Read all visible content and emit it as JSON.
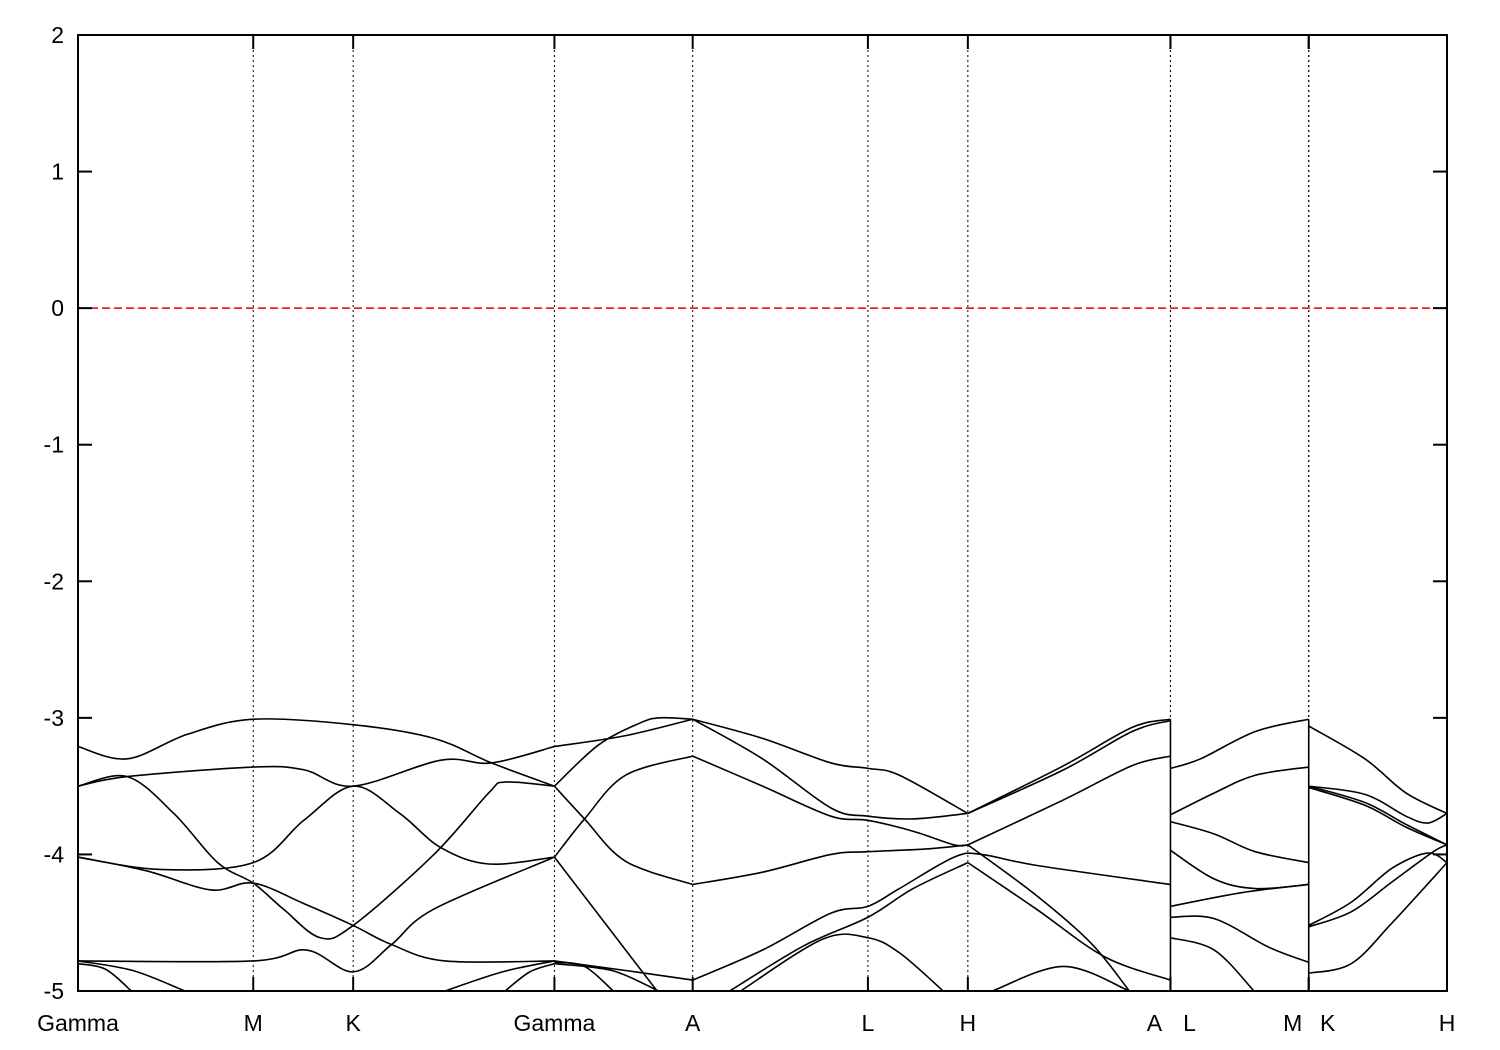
{
  "chart_data": {
    "type": "line",
    "title": "",
    "xlabel": "",
    "ylabel": "",
    "ylim": [
      -5,
      2
    ],
    "xlim": [
      0,
      1
    ],
    "grid": "vertical dotted lines at high-symmetry points",
    "legend": "none",
    "yticks": [
      {
        "value": 2,
        "label": "2"
      },
      {
        "value": 1,
        "label": "1"
      },
      {
        "value": 0,
        "label": "0"
      },
      {
        "value": -1,
        "label": "-1"
      },
      {
        "value": -2,
        "label": "-2"
      },
      {
        "value": -3,
        "label": "-3"
      },
      {
        "value": -4,
        "label": "-4"
      },
      {
        "value": -5,
        "label": "-5"
      }
    ],
    "xticks": [
      {
        "k": 0.0,
        "label": "Gamma"
      },
      {
        "k": 0.128,
        "label": "M"
      },
      {
        "k": 0.201,
        "label": "K"
      },
      {
        "k": 0.348,
        "label": "Gamma"
      },
      {
        "k": 0.449,
        "label": "A"
      },
      {
        "k": 0.577,
        "label": "L"
      },
      {
        "k": 0.65,
        "label": "H"
      },
      {
        "k": 0.798,
        "label": "A"
      },
      {
        "k": 0.798,
        "label": "L"
      },
      {
        "k": 0.899,
        "label": "M"
      },
      {
        "k": 0.899,
        "label": "K"
      },
      {
        "k": 1.0,
        "label": "H"
      }
    ],
    "path_breaks": [
      0.798,
      0.899
    ],
    "fermi_level": {
      "value": 0,
      "color": "#e00000",
      "style": "dashed"
    },
    "band_color": "#000000",
    "bands": [
      [
        [
          0,
          -3.21
        ],
        [
          0.036,
          -3.3
        ],
        [
          0.08,
          -3.12
        ],
        [
          0.128,
          -3.01
        ],
        [
          0.201,
          -3.05
        ],
        [
          0.26,
          -3.15
        ],
        [
          0.302,
          -3.33
        ],
        [
          0.348,
          -3.5
        ]
      ],
      [
        [
          0,
          -3.5
        ],
        [
          0.036,
          -3.43
        ],
        [
          0.128,
          -3.36
        ],
        [
          0.165,
          -3.38
        ],
        [
          0.201,
          -3.5
        ],
        [
          0.265,
          -3.31
        ],
        [
          0.302,
          -3.33
        ],
        [
          0.348,
          -3.21
        ]
      ],
      [
        [
          0,
          -3.5
        ],
        [
          0.036,
          -3.43
        ],
        [
          0.07,
          -3.7
        ],
        [
          0.102,
          -4.06
        ],
        [
          0.128,
          -4.21
        ],
        [
          0.15,
          -4.4
        ],
        [
          0.177,
          -4.61
        ],
        [
          0.201,
          -4.52
        ],
        [
          0.26,
          -4.0
        ],
        [
          0.3,
          -3.55
        ],
        [
          0.312,
          -3.47
        ],
        [
          0.348,
          -3.5
        ]
      ],
      [
        [
          0,
          -4.02
        ],
        [
          0.06,
          -4.11
        ],
        [
          0.128,
          -4.06
        ],
        [
          0.165,
          -3.75
        ],
        [
          0.201,
          -3.5
        ],
        [
          0.235,
          -3.7
        ],
        [
          0.265,
          -3.95
        ],
        [
          0.3,
          -4.07
        ],
        [
          0.348,
          -4.02
        ]
      ],
      [
        [
          0,
          -4.02
        ],
        [
          0.05,
          -4.12
        ],
        [
          0.097,
          -4.26
        ],
        [
          0.128,
          -4.21
        ],
        [
          0.165,
          -4.36
        ],
        [
          0.201,
          -4.52
        ],
        [
          0.229,
          -4.66
        ],
        [
          0.268,
          -4.78
        ],
        [
          0.348,
          -4.78
        ]
      ],
      [
        [
          0,
          -4.78
        ],
        [
          0.128,
          -4.78
        ],
        [
          0.167,
          -4.7
        ],
        [
          0.201,
          -4.86
        ],
        [
          0.229,
          -4.66
        ],
        [
          0.26,
          -4.4
        ],
        [
          0.348,
          -4.02
        ]
      ],
      [
        [
          0,
          -4.8
        ],
        [
          0.02,
          -4.84
        ],
        [
          0.039,
          -5.0
        ]
      ],
      [
        [
          0,
          -4.78
        ],
        [
          0.04,
          -4.85
        ],
        [
          0.078,
          -5.0
        ]
      ],
      [
        [
          0.268,
          -5.0
        ],
        [
          0.31,
          -4.86
        ],
        [
          0.348,
          -4.78
        ]
      ],
      [
        [
          0.312,
          -5.0
        ],
        [
          0.33,
          -4.86
        ],
        [
          0.348,
          -4.8
        ]
      ],
      [
        [
          0.348,
          -3.21
        ],
        [
          0.4,
          -3.13
        ],
        [
          0.449,
          -3.01
        ]
      ],
      [
        [
          0.348,
          -3.5
        ],
        [
          0.38,
          -3.2
        ],
        [
          0.41,
          -3.04
        ],
        [
          0.425,
          -3.0
        ],
        [
          0.449,
          -3.01
        ]
      ],
      [
        [
          0.348,
          -3.5
        ],
        [
          0.37,
          -3.74
        ],
        [
          0.4,
          -4.05
        ],
        [
          0.449,
          -4.22
        ]
      ],
      [
        [
          0.348,
          -4.02
        ],
        [
          0.37,
          -3.74
        ],
        [
          0.4,
          -3.42
        ],
        [
          0.449,
          -3.28
        ]
      ],
      [
        [
          0.348,
          -4.02
        ],
        [
          0.423,
          -5.0
        ]
      ],
      [
        [
          0.348,
          -4.78
        ],
        [
          0.4,
          -4.85
        ],
        [
          0.449,
          -4.92
        ]
      ],
      [
        [
          0.348,
          -4.79
        ],
        [
          0.37,
          -4.82
        ],
        [
          0.391,
          -5.0
        ]
      ],
      [
        [
          0.348,
          -4.8
        ],
        [
          0.39,
          -4.85
        ],
        [
          0.424,
          -5.0
        ]
      ],
      [
        [
          0.449,
          -3.01
        ],
        [
          0.5,
          -3.15
        ],
        [
          0.55,
          -3.33
        ],
        [
          0.577,
          -3.37
        ],
        [
          0.6,
          -3.42
        ],
        [
          0.65,
          -3.7
        ]
      ],
      [
        [
          0.449,
          -3.01
        ],
        [
          0.5,
          -3.3
        ],
        [
          0.55,
          -3.66
        ],
        [
          0.577,
          -3.72
        ],
        [
          0.61,
          -3.74
        ],
        [
          0.65,
          -3.7
        ]
      ],
      [
        [
          0.449,
          -3.28
        ],
        [
          0.5,
          -3.5
        ],
        [
          0.55,
          -3.72
        ],
        [
          0.577,
          -3.75
        ],
        [
          0.61,
          -3.83
        ],
        [
          0.64,
          -3.93
        ],
        [
          0.65,
          -3.93
        ]
      ],
      [
        [
          0.449,
          -4.22
        ],
        [
          0.5,
          -4.13
        ],
        [
          0.55,
          -4.0
        ],
        [
          0.577,
          -3.98
        ],
        [
          0.62,
          -3.96
        ],
        [
          0.65,
          -3.93
        ]
      ],
      [
        [
          0.449,
          -4.92
        ],
        [
          0.5,
          -4.7
        ],
        [
          0.55,
          -4.43
        ],
        [
          0.577,
          -4.38
        ],
        [
          0.6,
          -4.25
        ],
        [
          0.64,
          -4.02
        ],
        [
          0.66,
          -4.0
        ],
        [
          0.7,
          -4.08
        ],
        [
          0.798,
          -4.22
        ]
      ],
      [
        [
          0.476,
          -5.0
        ],
        [
          0.53,
          -4.67
        ],
        [
          0.577,
          -4.46
        ],
        [
          0.61,
          -4.25
        ],
        [
          0.65,
          -4.06
        ]
      ],
      [
        [
          0.484,
          -5.0
        ],
        [
          0.544,
          -4.62
        ],
        [
          0.577,
          -4.61
        ],
        [
          0.6,
          -4.72
        ],
        [
          0.632,
          -5.0
        ]
      ],
      [
        [
          0.65,
          -3.7
        ],
        [
          0.72,
          -3.35
        ],
        [
          0.77,
          -3.07
        ],
        [
          0.798,
          -3.01
        ]
      ],
      [
        [
          0.65,
          -3.7
        ],
        [
          0.72,
          -3.38
        ],
        [
          0.77,
          -3.1
        ],
        [
          0.798,
          -3.02
        ]
      ],
      [
        [
          0.65,
          -3.93
        ],
        [
          0.72,
          -3.6
        ],
        [
          0.77,
          -3.35
        ],
        [
          0.798,
          -3.28
        ]
      ],
      [
        [
          0.65,
          -4.06
        ],
        [
          0.7,
          -4.4
        ],
        [
          0.75,
          -4.75
        ],
        [
          0.798,
          -4.92
        ]
      ],
      [
        [
          0.65,
          -3.93
        ],
        [
          0.7,
          -4.3
        ],
        [
          0.74,
          -4.65
        ],
        [
          0.768,
          -5.0
        ]
      ],
      [
        [
          0.668,
          -5.0
        ],
        [
          0.72,
          -4.82
        ],
        [
          0.768,
          -5.0
        ]
      ],
      [
        [
          0.798,
          -3.37
        ],
        [
          0.82,
          -3.3
        ],
        [
          0.86,
          -3.1
        ],
        [
          0.899,
          -3.01
        ]
      ],
      [
        [
          0.798,
          -3.71
        ],
        [
          0.83,
          -3.55
        ],
        [
          0.86,
          -3.42
        ],
        [
          0.899,
          -3.36
        ]
      ],
      [
        [
          0.798,
          -3.76
        ],
        [
          0.83,
          -3.85
        ],
        [
          0.86,
          -3.98
        ],
        [
          0.899,
          -4.06
        ]
      ],
      [
        [
          0.798,
          -3.97
        ],
        [
          0.83,
          -4.18
        ],
        [
          0.86,
          -4.25
        ],
        [
          0.899,
          -4.22
        ]
      ],
      [
        [
          0.798,
          -4.38
        ],
        [
          0.85,
          -4.28
        ],
        [
          0.899,
          -4.22
        ]
      ],
      [
        [
          0.798,
          -4.46
        ],
        [
          0.83,
          -4.47
        ],
        [
          0.87,
          -4.68
        ],
        [
          0.899,
          -4.79
        ]
      ],
      [
        [
          0.798,
          -4.61
        ],
        [
          0.83,
          -4.7
        ],
        [
          0.859,
          -5.0
        ]
      ],
      [
        [
          0.899,
          -3.06
        ],
        [
          0.94,
          -3.3
        ],
        [
          0.97,
          -3.55
        ],
        [
          1.0,
          -3.7
        ]
      ],
      [
        [
          0.899,
          -3.5
        ],
        [
          0.94,
          -3.56
        ],
        [
          0.97,
          -3.72
        ],
        [
          0.986,
          -3.77
        ],
        [
          1.0,
          -3.7
        ]
      ],
      [
        [
          0.899,
          -3.5
        ],
        [
          0.94,
          -3.62
        ],
        [
          0.97,
          -3.78
        ],
        [
          1.0,
          -3.93
        ]
      ],
      [
        [
          0.899,
          -3.51
        ],
        [
          0.94,
          -3.64
        ],
        [
          0.97,
          -3.8
        ],
        [
          1.0,
          -3.93
        ]
      ],
      [
        [
          0.899,
          -4.52
        ],
        [
          0.93,
          -4.35
        ],
        [
          0.96,
          -4.1
        ],
        [
          0.986,
          -3.99
        ],
        [
          1.0,
          -4.06
        ]
      ],
      [
        [
          0.899,
          -4.53
        ],
        [
          0.93,
          -4.42
        ],
        [
          0.96,
          -4.2
        ],
        [
          0.99,
          -3.98
        ],
        [
          1.0,
          -3.93
        ]
      ],
      [
        [
          0.899,
          -4.87
        ],
        [
          0.93,
          -4.8
        ],
        [
          0.96,
          -4.5
        ],
        [
          1.0,
          -4.06
        ]
      ]
    ]
  }
}
